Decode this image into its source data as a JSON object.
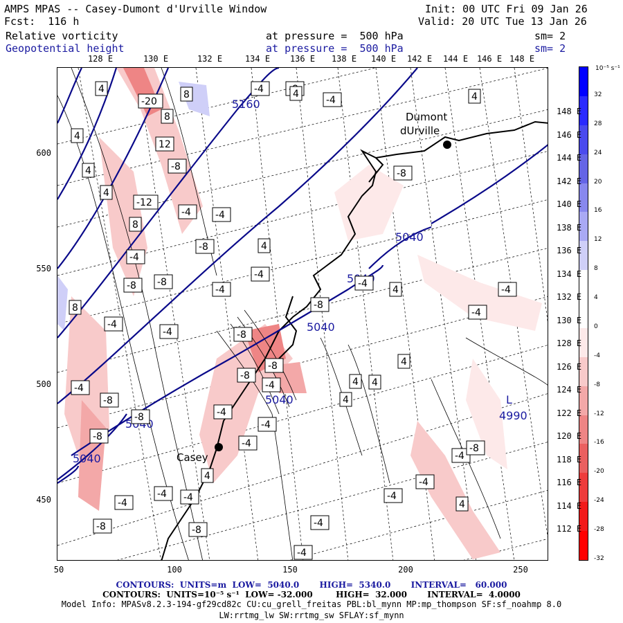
{
  "header": {
    "title": "AMPS MPAS -- Casey-Dumont d'Urville Window",
    "init": "Init: 00 UTC Fri 09 Jan 26",
    "fcst": "Fcst:  116 h",
    "valid": "Valid: 20 UTC Tue 13 Jan 26",
    "field1_name": "Relative vorticity",
    "field1_level": "at pressure =  500 hPa",
    "field1_sm": "sm= 2",
    "field2_name": "Geopotential height",
    "field2_level": "at pressure =  500 hPa",
    "field2_sm": "sm= 2"
  },
  "top_longitudes": [
    "128 E",
    "130 E",
    "132 E",
    "134 E",
    "136 E",
    "138 E",
    "140 E",
    "142 E",
    "144 E",
    "146 E",
    "148 E"
  ],
  "right_latitudes": [
    "148 E",
    "146 E",
    "144 E",
    "142 E",
    "140 E",
    "138 E",
    "136 E",
    "134 E",
    "132 E",
    "130 E",
    "128 E",
    "126 E",
    "124 E",
    "122 E",
    "120 E",
    "118 E",
    "116 E",
    "114 E",
    "112 E"
  ],
  "y_ticks": [
    "600",
    "550",
    "500",
    "450"
  ],
  "x_ticks": [
    "50",
    "100",
    "150",
    "200",
    "250"
  ],
  "colorbar": {
    "unit": "10⁻⁵ s⁻¹",
    "labels": [
      "32",
      "28",
      "24",
      "20",
      "16",
      "12",
      "8",
      "4",
      "0",
      "-4",
      "-8",
      "-12",
      "-16",
      "-20",
      "-24",
      "-28",
      "-32"
    ],
    "colors": [
      "#0000ff",
      "#2a2aff",
      "#4a4aee",
      "#6565e6",
      "#8888ee",
      "#a9a9f4",
      "#cfcff8",
      "#ffffff",
      "#ffffff",
      "#fde9e9",
      "#f8caca",
      "#f3a8a8",
      "#ee8585",
      "#ea6060",
      "#ee3c3c",
      "#f21a1a",
      "#ff0000"
    ]
  },
  "map": {
    "stations": [
      {
        "name": "Dumont",
        "name2": "dUrville"
      },
      {
        "name": "Casey"
      }
    ],
    "height_labels": [
      "5160",
      "5040",
      "5040",
      "5040",
      "5040",
      "5040",
      "5040"
    ],
    "low_label": {
      "marker": "L",
      "value": "4990"
    },
    "vort_labels": [
      "4",
      "-20",
      "8",
      "4",
      "-8",
      "4",
      "-4",
      "8",
      "-4",
      "12",
      "-8",
      "4",
      "4",
      "-4",
      "-12",
      "-4",
      "8",
      "-4",
      "-8",
      "4",
      "-4",
      "-8",
      "-8",
      "-4",
      "8",
      "-4",
      "-4",
      "-8",
      "-4",
      "-8",
      "-8",
      "-4",
      "-8",
      "4",
      "4",
      "4",
      "-4",
      "-8",
      "-8",
      "-4",
      "-8",
      "-4",
      "-4",
      "-4",
      "-4",
      "-8",
      "-4",
      "-4",
      "-4",
      "-4",
      "-4",
      "-8",
      "-4",
      "-4",
      "-8",
      "4",
      "4",
      "4",
      "4",
      "-8",
      "-4",
      "4"
    ]
  },
  "footer": {
    "line1": "CONTOURS:  UNITS=m  LOW=  5040.0       HIGH=  5340.0       INTERVAL=   60.000",
    "line2": "CONTOURS:  UNITS=10⁻⁵ s⁻¹  LOW= -32.000        HIGH=  32.000       INTERVAL=  4.0000",
    "line3": "Model Info: MPASv8.2.3-194-gf29cd82c CU:cu_grell_freitas PBL:bl_mynn MP:mp_thompson SF:sf_noahmp 8.0",
    "line4": "LW:rrtmg_lw SW:rrtmg_sw SFLAY:sf_mynn"
  }
}
